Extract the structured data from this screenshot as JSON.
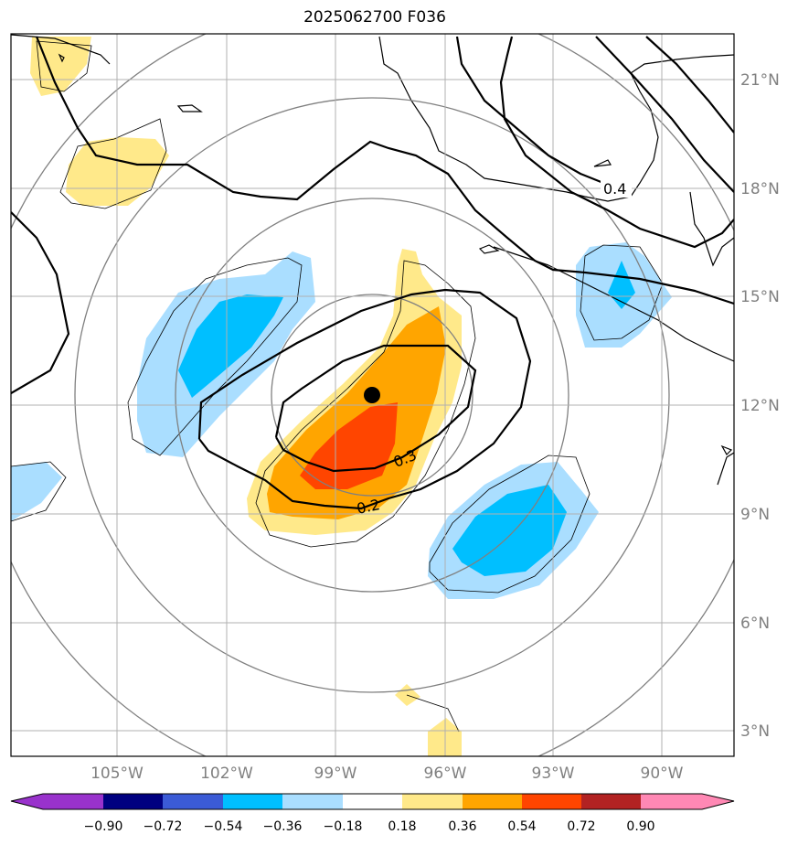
{
  "title": "2025062700 F036",
  "map": {
    "lat_labels": [
      "21°N",
      "18°N",
      "15°N",
      "12°N",
      "9°N",
      "6°N",
      "3°N"
    ],
    "lon_labels": [
      "105°W",
      "102°W",
      "99°W",
      "96°W",
      "93°W",
      "90°W"
    ],
    "contour_labels": [
      "0.4",
      "0.3",
      "0.2"
    ],
    "colors": {
      "dark_blue": "#000080",
      "mid_blue": "#3b5bd6",
      "cyan": "#00bfff",
      "light_blue": "#aadeff",
      "light_yellow": "#ffe98a",
      "orange": "#ffa500",
      "red_orange": "#ff4500",
      "dark_red": "#b22222",
      "pink": "#ff88b4",
      "purple": "#9932cc"
    }
  },
  "colorbar": {
    "ticks": [
      "−0.90",
      "−0.72",
      "−0.54",
      "−0.36",
      "−0.18",
      "0.18",
      "0.36",
      "0.54",
      "0.72",
      "0.90"
    ],
    "colors": [
      "#9932cc",
      "#000080",
      "#3b5bd6",
      "#00bfff",
      "#aadeff",
      "#ffffff",
      "#ffe98a",
      "#ffa500",
      "#ff4500",
      "#b22222",
      "#ff88b4"
    ]
  }
}
